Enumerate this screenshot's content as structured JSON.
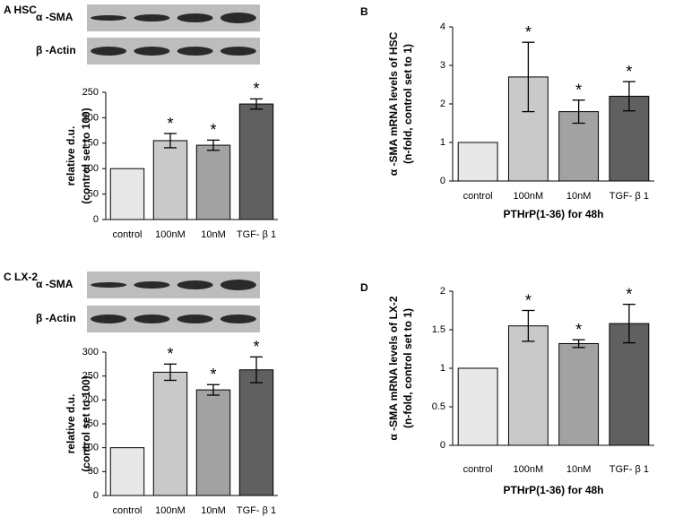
{
  "chart_data": [
    {
      "type": "bar",
      "panel_label": "A HSC",
      "blot_labels": [
        "α -SMA",
        "β -Actin"
      ],
      "ylabel": [
        "relative d.u.",
        "(control set to 100)"
      ],
      "categories": [
        "control",
        "100nM",
        "10nM",
        "TGF- β 1"
      ],
      "values": [
        100,
        155,
        146,
        227
      ],
      "errors": [
        0,
        14,
        10,
        10
      ],
      "significance": [
        null,
        "*",
        "*",
        "*"
      ],
      "colors": [
        "#e8e8e8",
        "#c9c9c9",
        "#a2a2a2",
        "#606060"
      ],
      "ylim": [
        0,
        250
      ],
      "yticks": [
        0,
        50,
        100,
        150,
        200,
        250
      ]
    },
    {
      "type": "bar",
      "panel_label": "B",
      "ylabel": [
        "α -SMA mRNA levels of HSC",
        "(n-fold, control set to 1)"
      ],
      "xlabel": "PTHrP(1-36) for 48h",
      "categories": [
        "control",
        "100nM",
        "10nM",
        "TGF- β 1"
      ],
      "values": [
        1,
        2.7,
        1.8,
        2.2
      ],
      "errors": [
        0,
        0.9,
        0.3,
        0.38
      ],
      "significance": [
        null,
        "*",
        "*",
        "*"
      ],
      "colors": [
        "#e8e8e8",
        "#c9c9c9",
        "#a2a2a2",
        "#606060"
      ],
      "ylim": [
        0,
        4
      ],
      "yticks": [
        0,
        1,
        2,
        3,
        4
      ]
    },
    {
      "type": "bar",
      "panel_label": "C LX-2",
      "blot_labels": [
        "α -SMA",
        "β -Actin"
      ],
      "ylabel": [
        "relative d.u.",
        "(control set to 100)"
      ],
      "categories": [
        "control",
        "100nM",
        "10nM",
        "TGF- β 1"
      ],
      "values": [
        100,
        258,
        221,
        263
      ],
      "errors": [
        0,
        17,
        11,
        27
      ],
      "significance": [
        null,
        "*",
        "*",
        "*"
      ],
      "colors": [
        "#e8e8e8",
        "#c9c9c9",
        "#a2a2a2",
        "#606060"
      ],
      "ylim": [
        0,
        300
      ],
      "yticks": [
        0,
        50,
        100,
        150,
        200,
        250,
        300
      ]
    },
    {
      "type": "bar",
      "panel_label": "D",
      "ylabel": [
        "α -SMA mRNA levels of LX-2",
        "(n-fold, control set to 1)"
      ],
      "xlabel": "PTHrP(1-36) for 48h",
      "categories": [
        "control",
        "100nM",
        "10nM",
        "TGF- β 1"
      ],
      "values": [
        1,
        1.55,
        1.32,
        1.58
      ],
      "errors": [
        0,
        0.2,
        0.05,
        0.25
      ],
      "significance": [
        null,
        "*",
        "*",
        "*"
      ],
      "colors": [
        "#e8e8e8",
        "#c9c9c9",
        "#a2a2a2",
        "#606060"
      ],
      "ylim": [
        0,
        2
      ],
      "yticks": [
        0,
        0.5,
        1,
        1.5,
        2
      ]
    }
  ]
}
